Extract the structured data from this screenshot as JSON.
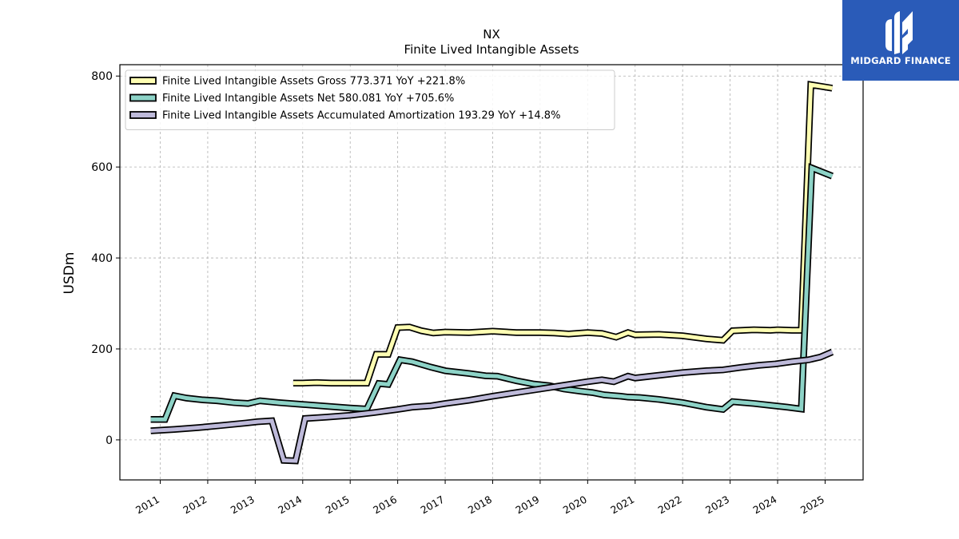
{
  "header": {
    "ticker": "NX",
    "title": "Finite Lived Intangible Assets"
  },
  "logo": {
    "text": "MIDGARD FINANCE",
    "color": "#2a5bb8"
  },
  "chart_data": {
    "type": "line",
    "title": "NX",
    "subtitle": "Finite Lived Intangible Assets",
    "ylabel": "USDm",
    "xlabel": "",
    "xlim": [
      2010.15,
      2025.8
    ],
    "ylim": [
      -88,
      825
    ],
    "yticks": [
      0,
      200,
      400,
      600,
      800
    ],
    "xticks": [
      2011,
      2012,
      2013,
      2014,
      2015,
      2016,
      2017,
      2018,
      2019,
      2020,
      2021,
      2022,
      2023,
      2024,
      2025
    ],
    "grid": true,
    "legend_position": "top-left",
    "series": [
      {
        "name": "Finite Lived Intangible Assets Gross  773.371 YoY +221.8%",
        "color": "#ffffb3",
        "points": [
          [
            2013.8,
            125
          ],
          [
            2014.0,
            125
          ],
          [
            2014.3,
            126
          ],
          [
            2014.6,
            125
          ],
          [
            2015.0,
            125
          ],
          [
            2015.35,
            125
          ],
          [
            2015.55,
            188
          ],
          [
            2015.8,
            188
          ],
          [
            2016.0,
            247
          ],
          [
            2016.25,
            248
          ],
          [
            2016.5,
            240
          ],
          [
            2016.75,
            235
          ],
          [
            2017.0,
            237
          ],
          [
            2017.5,
            236
          ],
          [
            2018.0,
            239
          ],
          [
            2018.5,
            236
          ],
          [
            2019.0,
            236
          ],
          [
            2019.3,
            235
          ],
          [
            2019.6,
            233
          ],
          [
            2020.0,
            236
          ],
          [
            2020.3,
            234
          ],
          [
            2020.6,
            226
          ],
          [
            2020.85,
            236
          ],
          [
            2021.0,
            231
          ],
          [
            2021.5,
            232
          ],
          [
            2022.0,
            229
          ],
          [
            2022.5,
            222
          ],
          [
            2022.85,
            219
          ],
          [
            2023.05,
            240
          ],
          [
            2023.5,
            242
          ],
          [
            2023.85,
            241
          ],
          [
            2024.0,
            242
          ],
          [
            2024.3,
            241
          ],
          [
            2024.5,
            241
          ],
          [
            2024.7,
            781
          ],
          [
            2025.15,
            773.371
          ]
        ]
      },
      {
        "name": "Finite Lived Intangible Assets Net  580.081 YoY +705.6%",
        "color": "#8dd3c7",
        "points": [
          [
            2010.8,
            45
          ],
          [
            2011.1,
            45
          ],
          [
            2011.3,
            97
          ],
          [
            2011.55,
            92
          ],
          [
            2011.9,
            88
          ],
          [
            2012.2,
            86
          ],
          [
            2012.55,
            82
          ],
          [
            2012.85,
            80
          ],
          [
            2013.1,
            86
          ],
          [
            2013.5,
            82
          ],
          [
            2014.0,
            78
          ],
          [
            2014.5,
            74
          ],
          [
            2015.0,
            70
          ],
          [
            2015.35,
            68
          ],
          [
            2015.6,
            124
          ],
          [
            2015.8,
            122
          ],
          [
            2016.05,
            176
          ],
          [
            2016.3,
            172
          ],
          [
            2016.7,
            160
          ],
          [
            2017.0,
            152
          ],
          [
            2017.5,
            146
          ],
          [
            2017.85,
            141
          ],
          [
            2018.1,
            140
          ],
          [
            2018.5,
            130
          ],
          [
            2018.85,
            123
          ],
          [
            2019.2,
            119
          ],
          [
            2019.5,
            112
          ],
          [
            2019.85,
            107
          ],
          [
            2020.1,
            104
          ],
          [
            2020.35,
            99
          ],
          [
            2020.7,
            96
          ],
          [
            2020.85,
            94
          ],
          [
            2021.1,
            93
          ],
          [
            2021.5,
            89
          ],
          [
            2022.0,
            82
          ],
          [
            2022.5,
            72
          ],
          [
            2022.85,
            67
          ],
          [
            2023.05,
            84
          ],
          [
            2023.5,
            80
          ],
          [
            2023.85,
            76
          ],
          [
            2024.2,
            72
          ],
          [
            2024.5,
            68
          ],
          [
            2024.72,
            598
          ],
          [
            2025.15,
            580.081
          ]
        ]
      },
      {
        "name": "Finite Lived Intangible Assets Accumulated Amortization  193.29 YoY +14.8%",
        "color": "#bebada",
        "points": [
          [
            2010.8,
            20
          ],
          [
            2011.3,
            23
          ],
          [
            2011.8,
            27
          ],
          [
            2012.3,
            32
          ],
          [
            2012.8,
            37
          ],
          [
            2013.05,
            40
          ],
          [
            2013.35,
            42
          ],
          [
            2013.6,
            -45
          ],
          [
            2013.85,
            -46
          ],
          [
            2014.05,
            47
          ],
          [
            2014.5,
            50
          ],
          [
            2015.0,
            54
          ],
          [
            2015.5,
            60
          ],
          [
            2016.0,
            67
          ],
          [
            2016.3,
            72
          ],
          [
            2016.7,
            75
          ],
          [
            2017.0,
            80
          ],
          [
            2017.5,
            87
          ],
          [
            2018.0,
            96
          ],
          [
            2018.5,
            104
          ],
          [
            2019.0,
            112
          ],
          [
            2019.5,
            120
          ],
          [
            2020.0,
            128
          ],
          [
            2020.3,
            132
          ],
          [
            2020.55,
            128
          ],
          [
            2020.85,
            140
          ],
          [
            2021.0,
            136
          ],
          [
            2021.5,
            142
          ],
          [
            2022.0,
            148
          ],
          [
            2022.5,
            152
          ],
          [
            2022.85,
            154
          ],
          [
            2023.2,
            159
          ],
          [
            2023.6,
            164
          ],
          [
            2023.95,
            167
          ],
          [
            2024.3,
            172
          ],
          [
            2024.65,
            176
          ],
          [
            2024.9,
            182
          ],
          [
            2025.15,
            193.29
          ]
        ]
      }
    ]
  }
}
